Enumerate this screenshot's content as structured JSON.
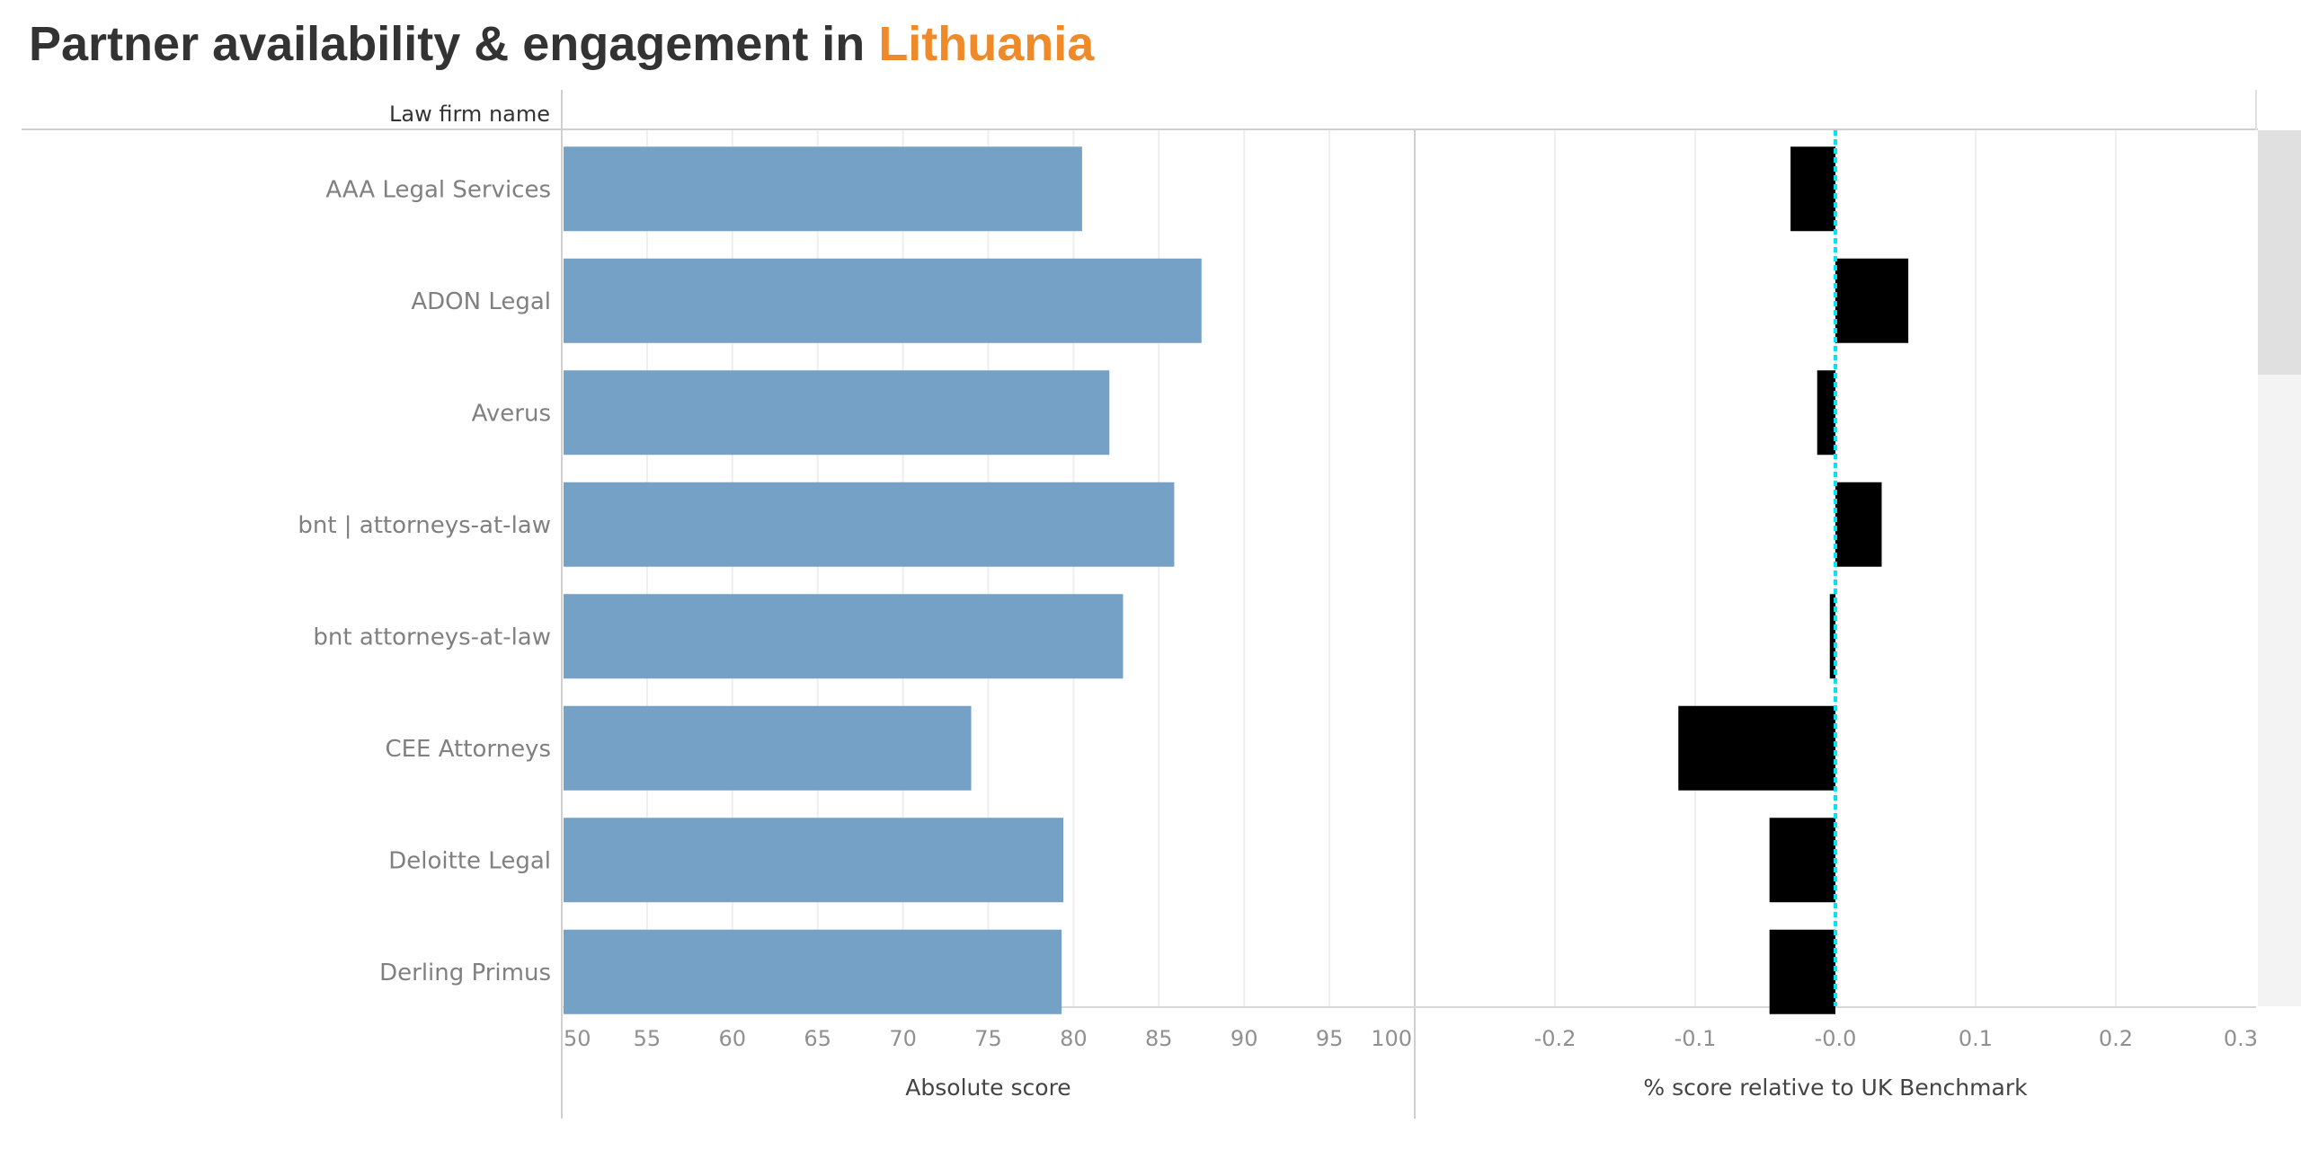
{
  "title": {
    "prefix": "Partner availability & engagement in",
    "country": "Lithuania",
    "country_color": "#ef8a2a"
  },
  "chart_data": [
    {
      "type": "bar",
      "orientation": "horizontal",
      "row_header": "Law firm name",
      "categories": [
        "AAA Legal Services",
        "ADON Legal",
        "Averus",
        "bnt | attorneys-at-law",
        "bnt attorneys-at-law",
        "CEE Attorneys",
        "Deloitte Legal",
        "Derling Primus"
      ],
      "values": [
        80.5,
        87.5,
        82.1,
        85.9,
        82.9,
        74.0,
        79.4,
        79.3
      ],
      "xlabel": "Absolute score",
      "xlim": [
        50,
        100
      ],
      "ticks": [
        "50",
        "55",
        "60",
        "65",
        "70",
        "75",
        "80",
        "85",
        "90",
        "95",
        "100"
      ],
      "bar_color": "#75a1c7",
      "grid": true
    },
    {
      "type": "bar",
      "orientation": "horizontal",
      "categories": [
        "AAA Legal Services",
        "ADON Legal",
        "Averus",
        "bnt | attorneys-at-law",
        "bnt attorneys-at-law",
        "CEE Attorneys",
        "Deloitte Legal",
        "Derling Primus"
      ],
      "values": [
        -0.032,
        0.052,
        -0.013,
        0.033,
        -0.004,
        -0.112,
        -0.047,
        -0.047
      ],
      "xlabel": "% score relative to UK Benchmark",
      "xlim": [
        -0.3,
        0.3
      ],
      "ticks": [
        "-0.2",
        "-0.1",
        "-0.0",
        "0.1",
        "0.2",
        "0.3"
      ],
      "bar_color": "#000000",
      "reference_line": {
        "value": 0,
        "color": "#00e5ee",
        "style": "dotted"
      },
      "grid": true
    }
  ]
}
